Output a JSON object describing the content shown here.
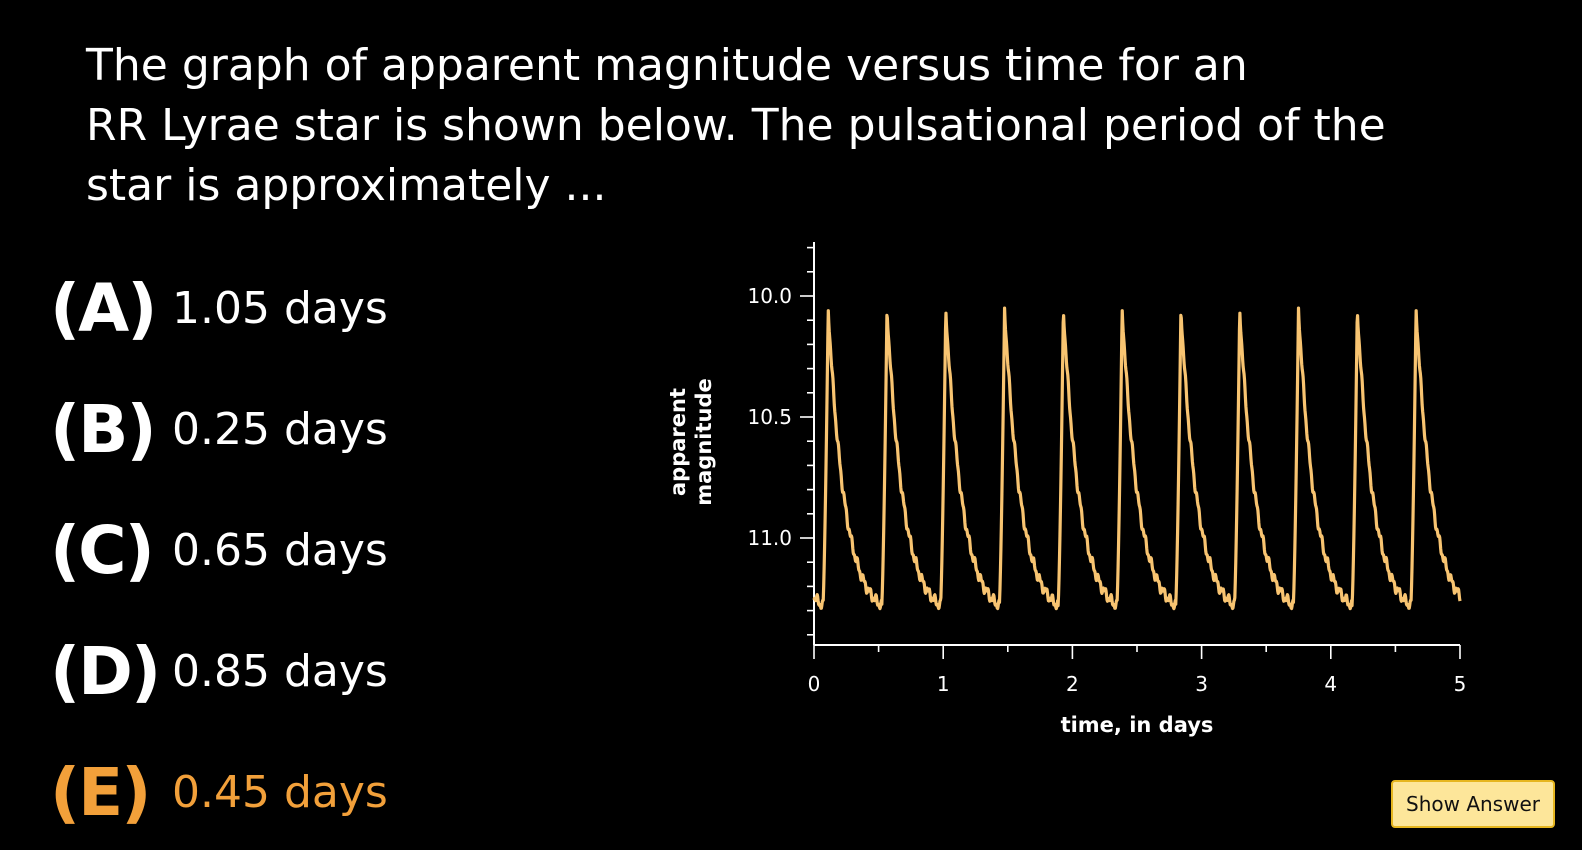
{
  "question": {
    "text": "The graph of apparent magnitude versus time for an\nRR Lyrae star is shown below.  The pulsational period of the\nstar is approximately ..."
  },
  "choices": [
    {
      "letter": "(A)",
      "text": "1.05 days"
    },
    {
      "letter": "(B)",
      "text": "0.25 days"
    },
    {
      "letter": "(C)",
      "text": "0.65 days"
    },
    {
      "letter": "(D)",
      "text": "0.85 days"
    },
    {
      "letter": "(E)",
      "text": "0.45 days",
      "highlighted": true
    }
  ],
  "show_answer_label": "Show Answer",
  "colors": {
    "background": "#000000",
    "text": "#ffffff",
    "highlight": "#f2a03a",
    "curve": "#f8c471",
    "button_bg": "#fde69a",
    "button_border": "#e6b620"
  },
  "chart_data": {
    "type": "line",
    "xlabel": "time, in days",
    "ylabel_lines": [
      "apparent",
      "magnitude"
    ],
    "x_ticks": [
      0,
      1,
      2,
      3,
      4,
      5
    ],
    "y_ticks": [
      10.0,
      10.5,
      11.0
    ],
    "y_tick_labels": [
      "10.0",
      "10.5",
      "11.0"
    ],
    "xlim": [
      0,
      5
    ],
    "ylim": [
      11.4,
      9.8
    ],
    "y_inverted": true,
    "grid": false,
    "series": [
      {
        "period_days": 0.455,
        "first_peak_day": 0.11,
        "brightest_magnitude": 10.05,
        "faintest_magnitude": 11.28,
        "peak_times": [
          0.11,
          0.565,
          1.02,
          1.475,
          1.93,
          2.385,
          2.84,
          3.295,
          3.75,
          4.205,
          4.66
        ]
      }
    ]
  }
}
